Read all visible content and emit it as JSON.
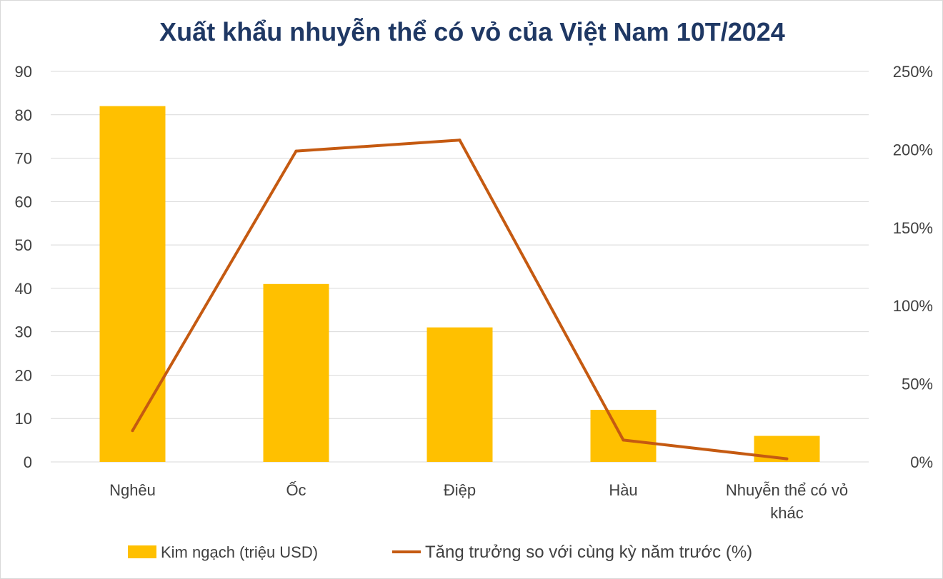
{
  "chart_data": {
    "type": "bar",
    "title": "Xuất khẩu nhuyễn thể có vỏ của Việt Nam 10T/2024",
    "categories": [
      "Nghêu",
      "Ốc",
      "Điệp",
      "Hàu",
      "Nhuyễn thể có vỏ khác"
    ],
    "series": [
      {
        "name": "Kim ngạch (triệu USD)",
        "type": "bar",
        "axis": "left",
        "color": "#ffc000",
        "values": [
          82,
          41,
          31,
          12,
          6
        ]
      },
      {
        "name": "Tăng trưởng so với cùng kỳ năm trước (%)",
        "type": "line",
        "axis": "right",
        "color": "#c55a11",
        "values": [
          20,
          199,
          206,
          14,
          2
        ]
      }
    ],
    "y_left": {
      "min": 0,
      "max": 90,
      "step": 10,
      "ticks": [
        "0",
        "10",
        "20",
        "30",
        "40",
        "50",
        "60",
        "70",
        "80",
        "90"
      ]
    },
    "y_right": {
      "min": 0,
      "max": 250,
      "step": 50,
      "ticks": [
        "0%",
        "50%",
        "100%",
        "150%",
        "200%",
        "250%"
      ]
    },
    "grid": true,
    "legend_position": "bottom"
  }
}
